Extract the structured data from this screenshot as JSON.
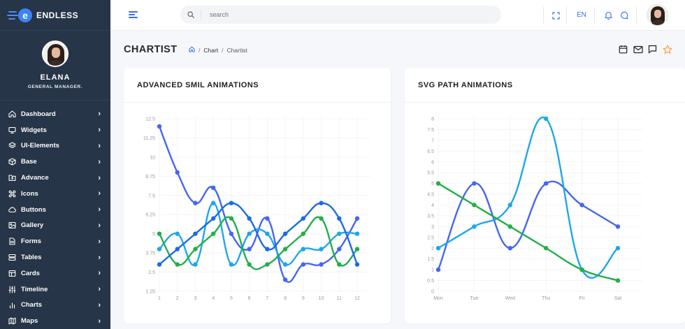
{
  "brand": {
    "name": "ENDLESS",
    "logo_letter": "e"
  },
  "profile": {
    "name": "ELANA",
    "role": "GENERAL MANAGER."
  },
  "sidebar": {
    "items": [
      {
        "label": "Dashboard",
        "icon": "home-icon"
      },
      {
        "label": "Widgets",
        "icon": "monitor-icon"
      },
      {
        "label": "UI-Elements",
        "icon": "layers-icon"
      },
      {
        "label": "Base",
        "icon": "box-icon"
      },
      {
        "label": "Advance",
        "icon": "folder-plus-icon"
      },
      {
        "label": "Icons",
        "icon": "command-icon"
      },
      {
        "label": "Buttons",
        "icon": "cloud-icon"
      },
      {
        "label": "Gallery",
        "icon": "image-icon"
      },
      {
        "label": "Forms",
        "icon": "file-text-icon"
      },
      {
        "label": "Tables",
        "icon": "server-icon"
      },
      {
        "label": "Cards",
        "icon": "package-icon"
      },
      {
        "label": "Timeline",
        "icon": "sliders-icon"
      },
      {
        "label": "Charts",
        "icon": "bar-chart-icon"
      },
      {
        "label": "Maps",
        "icon": "map-icon"
      }
    ]
  },
  "header": {
    "search_placeholder": "search",
    "language": "EN"
  },
  "page": {
    "title": "CHARTIST",
    "breadcrumb": [
      "Chart",
      "Chartist"
    ]
  },
  "colors": {
    "series_a": "#4466f2",
    "series_b": "#1ea6ec",
    "series_c": "#22af47",
    "series_d": "#1d6ae5",
    "accent_star": "#f7a233"
  },
  "chart_data": [
    {
      "type": "line",
      "title": "ADVANCED SMIL ANIMATIONS",
      "x": [
        "1",
        "2",
        "3",
        "4",
        "5",
        "6",
        "7",
        "8",
        "9",
        "10",
        "11",
        "12"
      ],
      "y_ticks": [
        "1.25",
        "2.5",
        "3.75",
        "5",
        "6.25",
        "7.5",
        "8.75",
        "10",
        "11.25",
        "12.5"
      ],
      "ylim": [
        1.25,
        12.5
      ],
      "grid": true,
      "series": [
        {
          "color": "#4466f2",
          "values": [
            12,
            9,
            7,
            8,
            5,
            4,
            6,
            2,
            3,
            3,
            4,
            6
          ]
        },
        {
          "color": "#1ea6ec",
          "values": [
            4,
            5,
            3,
            7,
            3,
            5,
            5,
            3,
            4,
            4,
            5,
            5
          ]
        },
        {
          "color": "#22af47",
          "values": [
            5,
            3,
            4,
            5,
            6,
            3,
            3,
            4,
            5,
            6,
            3,
            4
          ]
        },
        {
          "color": "#1d6ae5",
          "values": [
            3,
            4,
            5,
            6,
            7,
            6,
            4,
            5,
            6,
            7,
            6,
            3
          ]
        }
      ]
    },
    {
      "type": "line",
      "title": "SVG PATH ANIMATIONS",
      "x": [
        "Mon",
        "Tue",
        "Wed",
        "Thu",
        "Fri",
        "Sat"
      ],
      "y_ticks": [
        "0",
        "0.5",
        "1",
        "1.5",
        "2",
        "2.5",
        "3",
        "3.5",
        "4",
        "4.5",
        "5",
        "5.5",
        "6",
        "6.5",
        "7",
        "7.5",
        "8"
      ],
      "ylim": [
        0,
        8
      ],
      "grid": true,
      "series": [
        {
          "color": "#4466f2",
          "values": [
            1,
            5,
            2,
            5,
            4,
            3
          ]
        },
        {
          "color": "#1ea6ec",
          "values": [
            2,
            3,
            4,
            8,
            1,
            2
          ]
        },
        {
          "color": "#22af47",
          "values": [
            5,
            4,
            3,
            2,
            1,
            0.5
          ]
        }
      ]
    }
  ]
}
